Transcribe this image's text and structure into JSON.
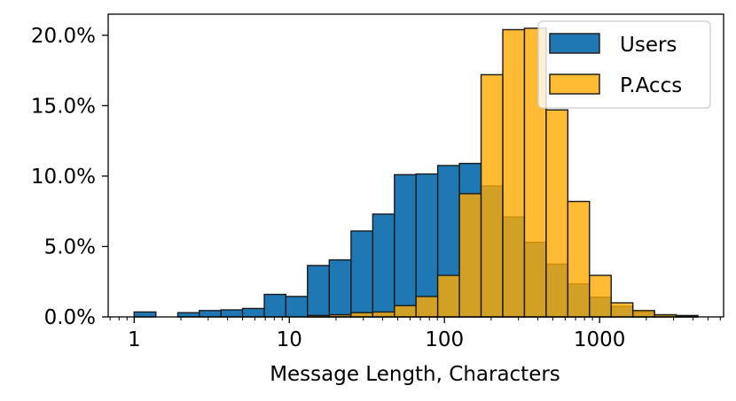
{
  "chart_data": {
    "type": "bar",
    "subtype": "histogram",
    "x_scale": "log",
    "xlabel": "Message Length, Characters",
    "ylabel": "",
    "x_ticks": [
      {
        "value": 1,
        "label": "1"
      },
      {
        "value": 10,
        "label": "10"
      },
      {
        "value": 100,
        "label": "100"
      },
      {
        "value": 1000,
        "label": "1000"
      }
    ],
    "y_ticks": [
      {
        "value": 0,
        "label": "0.0%"
      },
      {
        "value": 5,
        "label": "5.0%"
      },
      {
        "value": 10,
        "label": "10.0%"
      },
      {
        "value": 15,
        "label": "15.0%"
      },
      {
        "value": 20,
        "label": "20.0%"
      }
    ],
    "xlim": [
      0.68,
      6300
    ],
    "ylim": [
      0,
      21.5
    ],
    "bin_edges": [
      1,
      1.38,
      1.91,
      2.63,
      3.63,
      5.0,
      6.9,
      9.5,
      13.1,
      18.1,
      25,
      34.5,
      47.6,
      65.6,
      90.5,
      124.9,
      172.3,
      237.7,
      327.9,
      452.4,
      624.1,
      861.0,
      1187.8,
      1638.7,
      2260.7,
      3118.9,
      4302.6
    ],
    "series": [
      {
        "name": "Users",
        "color": "#1f77b4",
        "values": [
          0.35,
          0.0,
          0.3,
          0.45,
          0.5,
          0.6,
          1.6,
          1.45,
          3.65,
          4.05,
          6.1,
          7.3,
          10.1,
          10.15,
          10.75,
          10.9,
          9.3,
          7.1,
          5.3,
          3.75,
          2.35,
          1.4,
          0.75,
          0.35,
          0.15,
          0.1
        ]
      },
      {
        "name": "P.Accs",
        "color": "#ffaa00",
        "values": [
          0.0,
          0.0,
          0.0,
          0.0,
          0.0,
          0.0,
          0.0,
          0.0,
          0.1,
          0.15,
          0.3,
          0.35,
          0.8,
          1.45,
          2.95,
          8.75,
          17.2,
          20.4,
          20.5,
          14.7,
          8.2,
          2.95,
          1.0,
          0.45,
          0.15,
          0.05
        ]
      }
    ],
    "legend": {
      "position": "top-right",
      "entries": [
        "Users",
        "P.Accs"
      ]
    },
    "grid": false
  }
}
